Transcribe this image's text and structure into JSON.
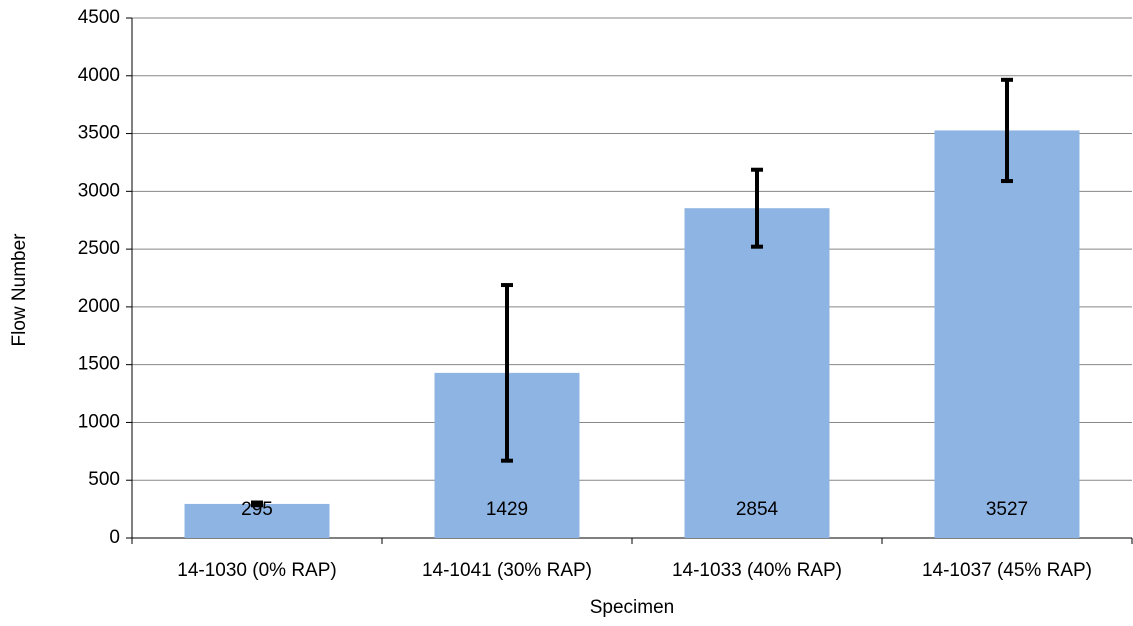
{
  "chart_data": {
    "type": "bar",
    "x_label": "Specimen",
    "y_label": "Flow Number",
    "categories": [
      "14-1030 (0% RAP)",
      "14-1041 (30% RAP)",
      "14-1033 (40% RAP)",
      "14-1037 (45% RAP)"
    ],
    "values": [
      295,
      1429,
      2854,
      3527
    ],
    "errors": [
      12,
      760,
      333,
      438
    ],
    "color": "#8eb4e3",
    "error_color": "#000000",
    "ylim": [
      0,
      4500
    ],
    "yticks": [
      0,
      500,
      1000,
      1500,
      2000,
      2500,
      3000,
      3500,
      4000,
      4500
    ],
    "grid": true
  }
}
